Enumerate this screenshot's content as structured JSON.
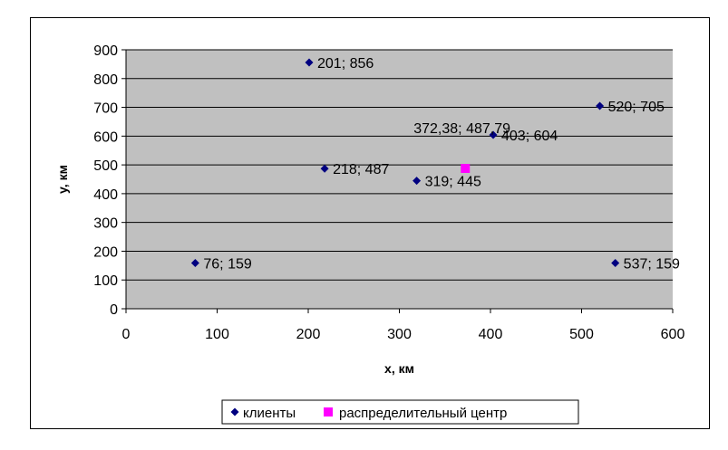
{
  "chart_data": {
    "type": "scatter",
    "xlabel": "x, км",
    "ylabel": "y, км",
    "xlim": [
      0,
      600
    ],
    "ylim": [
      0,
      900
    ],
    "x_ticks": [
      "0",
      "100",
      "200",
      "300",
      "400",
      "500",
      "600"
    ],
    "y_ticks": [
      "0",
      "100",
      "200",
      "300",
      "400",
      "500",
      "600",
      "700",
      "800",
      "900"
    ],
    "grid": "horizontal",
    "plot_background": "#c0c0c0",
    "legend_position": "bottom",
    "series": [
      {
        "name": "клиенты",
        "marker": "diamond",
        "color": "#000080",
        "points": [
          {
            "x": 201,
            "y": 856,
            "label": "201; 856"
          },
          {
            "x": 520,
            "y": 705,
            "label": "520; 705"
          },
          {
            "x": 403,
            "y": 604,
            "label": "403; 604"
          },
          {
            "x": 218,
            "y": 487,
            "label": "218; 487"
          },
          {
            "x": 319,
            "y": 445,
            "label": "319; 445"
          },
          {
            "x": 76,
            "y": 159,
            "label": "76; 159"
          },
          {
            "x": 537,
            "y": 159,
            "label": "537; 159"
          }
        ]
      },
      {
        "name": "распределительный центр",
        "marker": "square",
        "color": "#ff00ff",
        "points": [
          {
            "x": 372.38,
            "y": 487.79,
            "label": "372,38; 487,79"
          }
        ]
      }
    ]
  }
}
